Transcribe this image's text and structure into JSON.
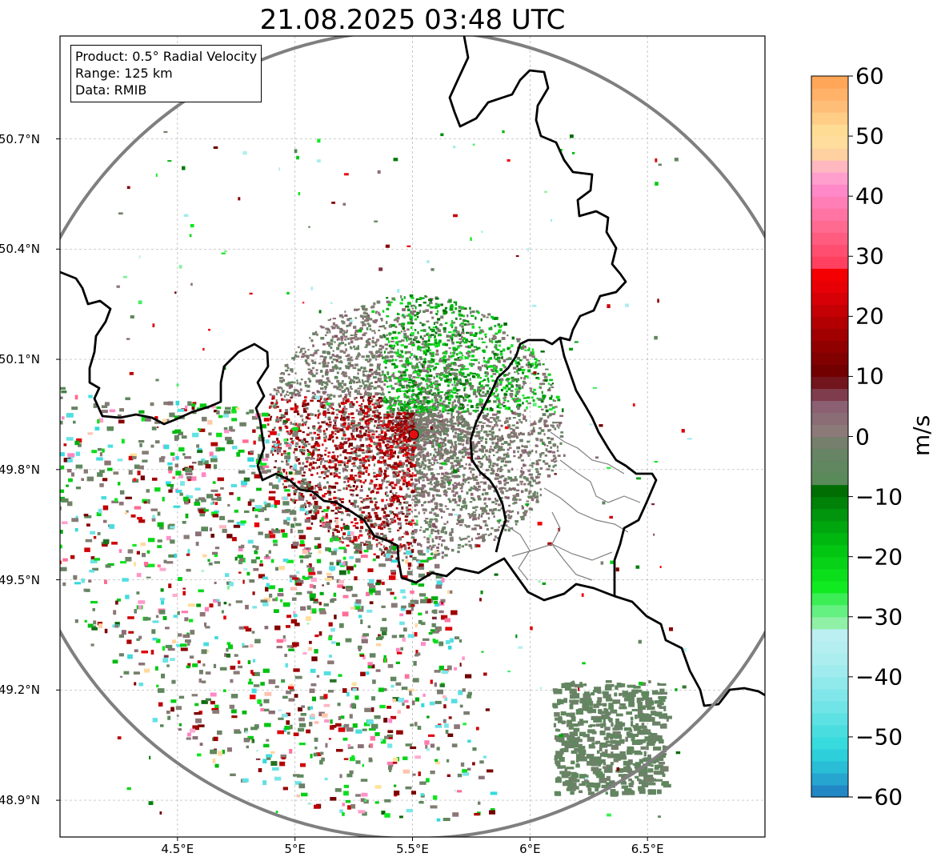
{
  "title": "21.08.2025 03:48 UTC",
  "info_box": {
    "product": "Product: 0.5° Radial Velocity",
    "range": "Range: 125 km",
    "data": "Data: RMIB"
  },
  "map": {
    "lon_range": [
      4.0,
      7.0
    ],
    "lat_range": [
      48.8,
      50.98
    ],
    "radar_site": {
      "lon": 5.505,
      "lat": 49.915
    },
    "range_ring_km": 125,
    "grid": true,
    "lat_ticks": [
      {
        "value": 50.7,
        "label": "50.7°N"
      },
      {
        "value": 50.4,
        "label": "50.4°N"
      },
      {
        "value": 50.1,
        "label": "50.1°N"
      },
      {
        "value": 49.8,
        "label": "49.8°N"
      },
      {
        "value": 49.5,
        "label": "49.5°N"
      },
      {
        "value": 49.2,
        "label": "49.2°N"
      },
      {
        "value": 48.9,
        "label": "48.9°N"
      }
    ],
    "lon_ticks": [
      {
        "value": 4.5,
        "label": "4.5°E"
      },
      {
        "value": 5.0,
        "label": "5°E"
      },
      {
        "value": 5.5,
        "label": "5.5°E"
      },
      {
        "value": 6.0,
        "label": "6°E"
      },
      {
        "value": 6.5,
        "label": "6.5°E"
      }
    ]
  },
  "colorbar": {
    "label": "m/s",
    "range": [
      -60,
      60
    ],
    "ticks": [
      {
        "value": 60,
        "label": "60"
      },
      {
        "value": 50,
        "label": "50"
      },
      {
        "value": 40,
        "label": "40"
      },
      {
        "value": 30,
        "label": "30"
      },
      {
        "value": 20,
        "label": "20"
      },
      {
        "value": 10,
        "label": "10"
      },
      {
        "value": 0,
        "label": "0"
      },
      {
        "value": -10,
        "label": "−10"
      },
      {
        "value": -20,
        "label": "−20"
      },
      {
        "value": -30,
        "label": "−30"
      },
      {
        "value": -40,
        "label": "−40"
      },
      {
        "value": -50,
        "label": "−50"
      },
      {
        "value": -60,
        "label": "−60"
      }
    ],
    "stops": [
      {
        "v": -60,
        "c": "#1f78c0"
      },
      {
        "v": -56,
        "c": "#27b4d4"
      },
      {
        "v": -52,
        "c": "#2ed8dc"
      },
      {
        "v": -45,
        "c": "#70e4e6"
      },
      {
        "v": -38,
        "c": "#a8ecef"
      },
      {
        "v": -32,
        "c": "#bff0f2"
      },
      {
        "v": -31,
        "c": "#90f0a6"
      },
      {
        "v": -28,
        "c": "#50f070"
      },
      {
        "v": -25,
        "c": "#10ea20"
      },
      {
        "v": -18,
        "c": "#00c010"
      },
      {
        "v": -12,
        "c": "#008c0c"
      },
      {
        "v": -8,
        "c": "#006400"
      },
      {
        "v": -7,
        "c": "#5a8a5a"
      },
      {
        "v": -2,
        "c": "#6a8266"
      },
      {
        "v": 1,
        "c": "#8c7a78"
      },
      {
        "v": 5,
        "c": "#8a6072"
      },
      {
        "v": 8,
        "c": "#7a2a3a"
      },
      {
        "v": 10,
        "c": "#6a0000"
      },
      {
        "v": 17,
        "c": "#a00000"
      },
      {
        "v": 24,
        "c": "#e00008"
      },
      {
        "v": 28,
        "c": "#fa0000"
      },
      {
        "v": 29,
        "c": "#ff4060"
      },
      {
        "v": 35,
        "c": "#ff6a90"
      },
      {
        "v": 41,
        "c": "#ff88c8"
      },
      {
        "v": 44,
        "c": "#ffaad0"
      },
      {
        "v": 47,
        "c": "#ffd0a0"
      },
      {
        "v": 50,
        "c": "#ffe49a"
      },
      {
        "v": 55,
        "c": "#ffbe78"
      },
      {
        "v": 60,
        "c": "#ffa050"
      }
    ]
  },
  "colors": {
    "ring": "#7f7f7f",
    "border": "#000000",
    "admin_border": "#808080",
    "grid": "#b0b0b0",
    "radar_marker": "#e01010"
  }
}
